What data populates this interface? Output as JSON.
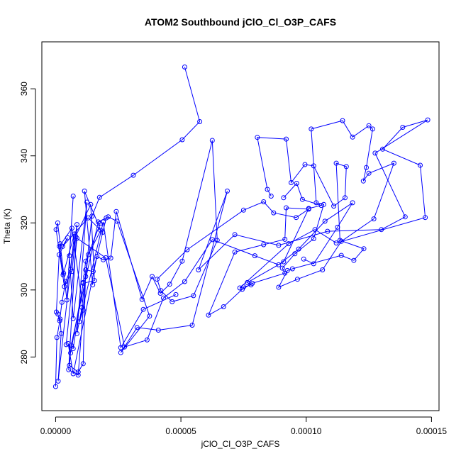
{
  "chart_data": {
    "type": "scatter",
    "title": "ATOM2 Southbound jClO_Cl_O3P_CAFS",
    "xlabel": "jClO_Cl_O3P_CAFS",
    "ylabel": "Theta (K)",
    "xlim": [
      -5.5e-06,
      0.000153
    ],
    "ylim": [
      264,
      374
    ],
    "x_ticks": [
      {
        "value": 0.0,
        "label": "0.00000"
      },
      {
        "value": 5e-05,
        "label": "0.00005"
      },
      {
        "value": 0.0001,
        "label": "0.00010"
      },
      {
        "value": 0.00015,
        "label": "0.00015"
      }
    ],
    "y_ticks": [
      {
        "value": 280,
        "label": "280"
      },
      {
        "value": 300,
        "label": "300"
      },
      {
        "value": 320,
        "label": "320"
      },
      {
        "value": 340,
        "label": "340"
      },
      {
        "value": 360,
        "label": "360"
      }
    ],
    "grid": false,
    "legend": "none",
    "series_color": "#0000ff",
    "marker": "open-circle",
    "line": true,
    "series": [
      {
        "points": [
          [
            5.15e-05,
            366.5
          ],
          [
            5.75e-05,
            350.2
          ],
          [
            5.05e-05,
            344.8
          ],
          [
            3.1e-05,
            334.2
          ],
          [
            1.75e-05,
            327.6
          ],
          [
            1.45e-05,
            322.0
          ],
          [
            1.05e-05,
            294.8
          ],
          [
            8.5e-06,
            287.0
          ],
          [
            1.25e-05,
            326.2
          ],
          [
            7e-06,
            291.5
          ],
          [
            5.5e-06,
            310.2
          ],
          [
            7e-06,
            328.0
          ],
          [
            4.5e-06,
            297.0
          ],
          [
            3.2e-06,
            305.0
          ],
          [
            1.8e-06,
            313.8
          ],
          [
            8e-07,
            320.0
          ],
          [
            2e-07,
            318.0
          ],
          [
            3.5e-06,
            301.0
          ],
          [
            6.5e-06,
            305.5
          ],
          [
            8e-06,
            316.0
          ],
          [
            1.4e-05,
            325.5
          ],
          [
            1.55e-05,
            302.8
          ],
          [
            1.1e-05,
            302.0
          ],
          [
            6e-06,
            281.2
          ],
          [
            5e-06,
            284.0
          ],
          [
            7e-06,
            275.0
          ],
          [
            1.65e-05,
            310.0
          ],
          [
            1.9e-05,
            309.0
          ],
          [
            2.2e-05,
            309.5
          ],
          [
            2.42e-05,
            323.4
          ],
          [
            3.45e-05,
            297.2
          ],
          [
            3.85e-05,
            304.0
          ],
          [
            4.18e-05,
            299.0
          ],
          [
            4.55e-05,
            301.7
          ],
          [
            5.05e-05,
            308.6
          ],
          [
            6.25e-05,
            344.6
          ],
          [
            6.45e-05,
            314.8
          ],
          [
            5.5e-05,
            298.3
          ],
          [
            4.65e-05,
            296.5
          ],
          [
            4.2e-05,
            299.8
          ],
          [
            4.05e-05,
            303.2
          ],
          [
            5.25e-05,
            312.0
          ],
          [
            7.5e-05,
            323.8
          ],
          [
            8.3e-05,
            326.3
          ],
          [
            8.7e-05,
            323.0
          ],
          [
            9.6e-05,
            321.6
          ],
          [
            0.000101,
            324.1
          ],
          [
            9.2e-05,
            324.5
          ],
          [
            9.15e-05,
            315.1
          ],
          [
            8.3e-05,
            313.5
          ],
          [
            7.15e-05,
            311.3
          ],
          [
            6.1e-05,
            292.5
          ],
          [
            6.7e-05,
            295.0
          ],
          [
            7.45e-05,
            300.2
          ],
          [
            7.85e-05,
            302.0
          ],
          [
            9.15e-05,
            305.0
          ],
          [
            9.05e-05,
            306.5
          ],
          [
            9.55e-05,
            310.8
          ],
          [
            0.000103,
            315.3
          ],
          [
            0.000107,
            325.5
          ],
          [
            0.000104,
            326.0
          ],
          [
            0.000102,
            348.0
          ],
          [
            0.0001145,
            350.5
          ],
          [
            0.0001185,
            345.6
          ],
          [
            0.000125,
            349.0
          ],
          [
            0.0001265,
            348.0
          ],
          [
            0.000124,
            336.5
          ],
          [
            0.0001228,
            332.5
          ],
          [
            0.000125,
            334.8
          ],
          [
            0.000135,
            337.8
          ],
          [
            0.000127,
            321.2
          ],
          [
            0.000114,
            314.5
          ],
          [
            0.0001065,
            306.0
          ],
          [
            9.65e-05,
            303.2
          ],
          [
            8.9e-05,
            300.8
          ],
          [
            9.25e-05,
            305.8
          ],
          [
            9.45e-05,
            306.3
          ],
          [
            0.000114,
            310.3
          ],
          [
            0.000119,
            308.8
          ],
          [
            0.000123,
            312.3
          ],
          [
            0.0001135,
            314.8
          ],
          [
            0.000112,
            337.8
          ],
          [
            0.000116,
            336.8
          ],
          [
            0.0001155,
            327.5
          ],
          [
            0.000111,
            325.0
          ],
          [
            0.000103,
            337.0
          ],
          [
            9.95e-05,
            337.4
          ],
          [
            9.4e-05,
            332.0
          ],
          [
            9.2e-05,
            345.0
          ],
          [
            8.05e-05,
            345.5
          ],
          [
            8.45e-05,
            330.0
          ],
          [
            8.6e-05,
            328.0
          ]
        ]
      },
      {
        "points": [
          [
            1.48e-05,
            301.5
          ],
          [
            1.15e-05,
            329.5
          ],
          [
            1.8e-05,
            317.8
          ],
          [
            1.3e-05,
            310.5
          ],
          [
            1.2e-05,
            304.0
          ],
          [
            9e-06,
            274.6
          ],
          [
            5.2e-06,
            276.2
          ],
          [
            8.5e-06,
            319.5
          ],
          [
            6e-06,
            306.2
          ],
          [
            4e-06,
            302.5
          ],
          [
            2.5e-06,
            296.3
          ],
          [
            1.6e-06,
            290.8
          ],
          [
            9e-07,
            292.8
          ],
          [
            3e-07,
            293.4
          ],
          [
            1.4e-06,
            310.5
          ],
          [
            4.8e-06,
            315.6
          ],
          [
            2.8e-06,
            313.0
          ],
          [
            1.3e-05,
            321.5
          ],
          [
            1.88e-05,
            317.2
          ],
          [
            2.02e-05,
            321.5
          ],
          [
            1.5e-05,
            305.5
          ],
          [
            1.2e-05,
            306.0
          ],
          [
            1.1e-05,
            278.0
          ],
          [
            9e-06,
            275.5
          ],
          [
            5.5e-06,
            277.5
          ],
          [
            6.2e-06,
            283.5
          ],
          [
            1.7e-05,
            320.3
          ],
          [
            2.1e-05,
            321.8
          ],
          [
            2.45e-05,
            320.5
          ],
          [
            3.75e-05,
            292.2
          ],
          [
            2.6e-05,
            281.3
          ],
          [
            3.25e-05,
            288.8
          ],
          [
            4.1e-05,
            288.0
          ],
          [
            5.45e-05,
            289.5
          ],
          [
            6.85e-05,
            329.5
          ],
          [
            5.7e-05,
            306.0
          ],
          [
            7.15e-05,
            316.5
          ],
          [
            8.9e-05,
            313.3
          ],
          [
            0.0001085,
            317.5
          ],
          [
            0.00013,
            318.0
          ],
          [
            0.0001395,
            321.8
          ],
          [
            0.0001275,
            340.8
          ],
          [
            0.0001485,
            350.7
          ],
          [
            0.0001385,
            348.5
          ],
          [
            0.0001305,
            342.0
          ],
          [
            0.0001455,
            337.2
          ],
          [
            0.0001475,
            321.6
          ],
          [
            0.000112,
            314.0
          ],
          [
            0.0001035,
            318.0
          ],
          [
            9.3e-05,
            313.8
          ],
          [
            7.35e-05,
            300.6
          ],
          [
            7.5e-05,
            300.9
          ],
          [
            7.8e-05,
            301.5
          ],
          [
            7.65e-05,
            302.2
          ],
          [
            9.1e-05,
            308.4
          ],
          [
            0.000101,
            324.3
          ],
          [
            0.000106,
            325.2
          ],
          [
            9.85e-05,
            327.0
          ],
          [
            9.62e-05,
            331.8
          ],
          [
            9.1e-05,
            327.5
          ]
        ]
      },
      {
        "points": [
          [
            1.78e-05,
            319.8
          ],
          [
            1.2e-05,
            308.6
          ],
          [
            1.1e-05,
            302.2
          ],
          [
            7e-06,
            282.5
          ],
          [
            4.2e-06,
            283.7
          ],
          [
            8.5e-06,
            315.4
          ],
          [
            2e-05,
            309.6
          ],
          [
            2.75e-05,
            283.0
          ],
          [
            3.65e-05,
            285.1
          ],
          [
            4.3e-05,
            297.6
          ],
          [
            5.15e-05,
            302.5
          ],
          [
            6.25e-05,
            315.0
          ],
          [
            7.95e-05,
            310.2
          ],
          [
            8.9e-05,
            307.5
          ],
          [
            9.7e-05,
            312.2
          ],
          [
            0.0001075,
            320.5
          ],
          [
            0.0001185,
            326.0
          ],
          [
            0.0001125,
            318.7
          ],
          [
            0.000103,
            307.8
          ],
          [
            9.9e-05,
            309.2
          ]
        ]
      },
      {
        "points": [
          [
            0.0,
            271.2
          ],
          [
            5e-07,
            285.8
          ],
          [
            1.8e-06,
            291.3
          ],
          [
            2.2e-06,
            287.0
          ],
          [
            1e-06,
            272.8
          ],
          [
            7.5e-06,
            316.7
          ],
          [
            3e-06,
            304.5
          ],
          [
            1.5e-06,
            313.0
          ],
          [
            6.5e-06,
            318.4
          ],
          [
            1.1e-05,
            294.0
          ],
          [
            9.5e-06,
            290.5
          ],
          [
            1.9e-05,
            320.3
          ],
          [
            2.6e-05,
            282.8
          ],
          [
            3.5e-05,
            294.2
          ],
          [
            4.8e-05,
            298.6
          ]
        ]
      }
    ]
  }
}
